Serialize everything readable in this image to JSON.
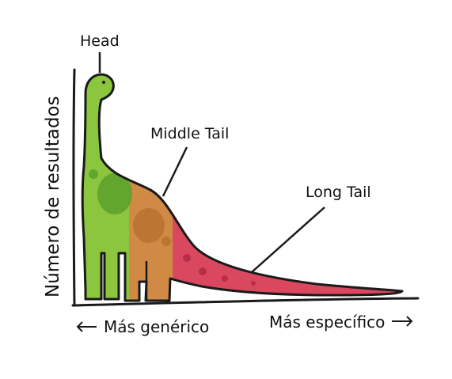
{
  "labels": {
    "head": "Head",
    "middle_tail": "Middle Tail",
    "long_tail": "Long Tail"
  },
  "axes": {
    "y_label": "Número de resultados",
    "x_left": "Más genérico",
    "x_right": "Más específico",
    "x_left_arrow": "left-arrow-icon",
    "x_right_arrow": "right-arrow-icon"
  },
  "colors": {
    "head": "#8cc63f",
    "head_shadow": "#5aa02c",
    "middle": "#d08a45",
    "middle_shadow": "#b56d2c",
    "tail": "#d9485f",
    "tail_shadow": "#b82e48",
    "outline": "#1a1a1a"
  }
}
